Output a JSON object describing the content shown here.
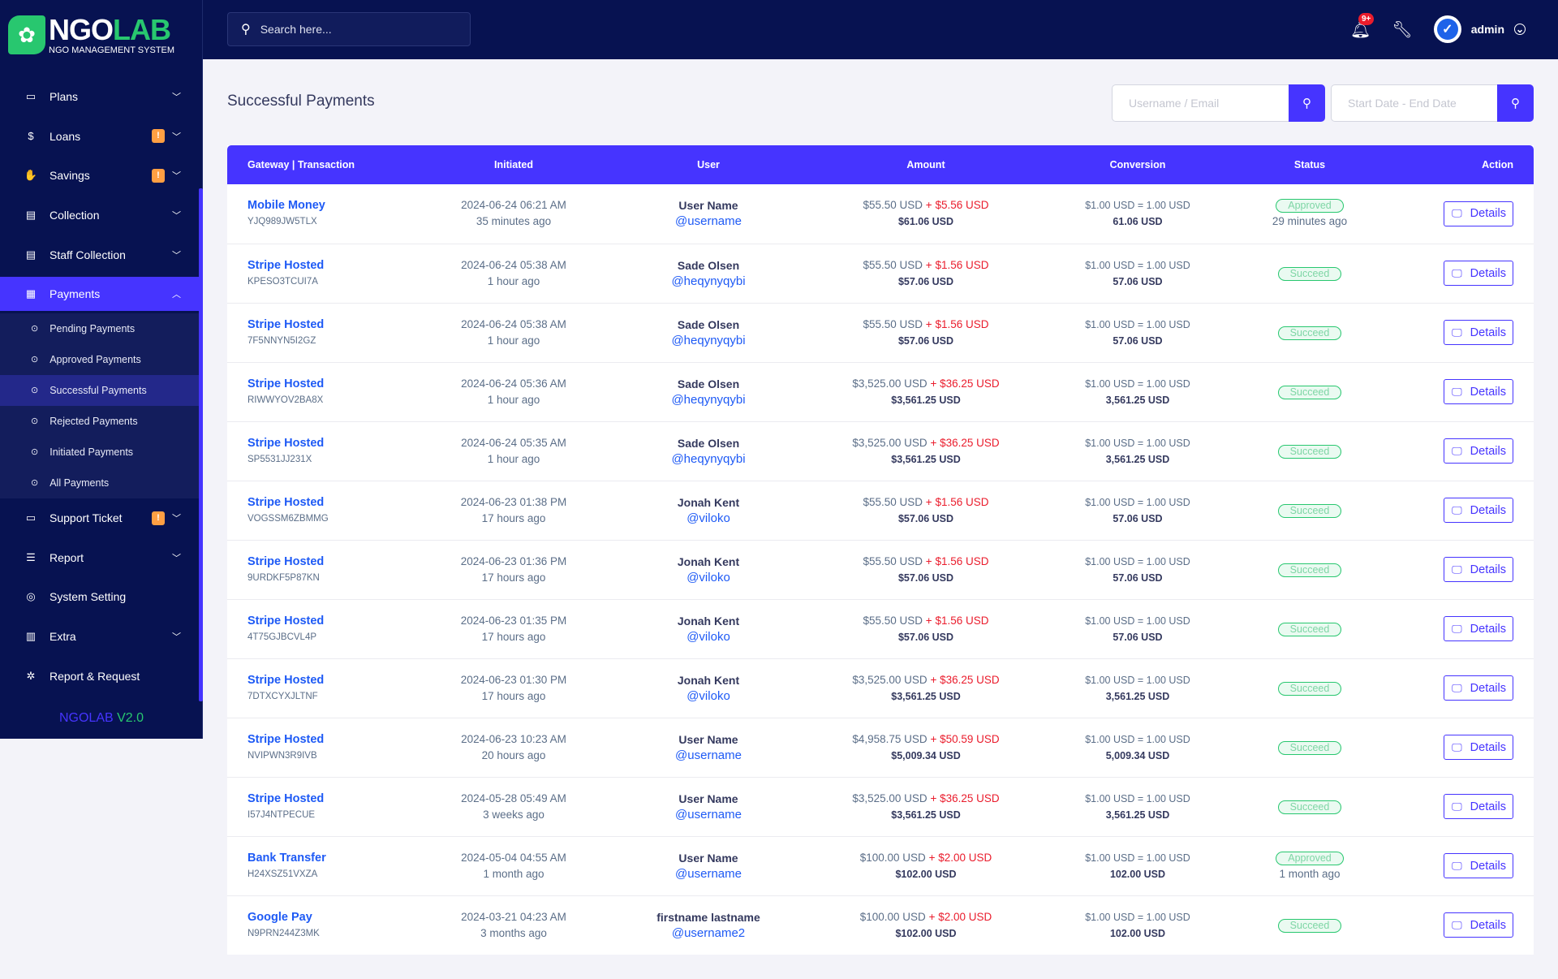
{
  "brand": {
    "logo_main_a": "NGO",
    "logo_main_b": "LAB",
    "logo_sub": "NGO MANAGEMENT SYSTEM",
    "version_name": "NGOLAB",
    "version_num": "V2.0"
  },
  "header": {
    "search_placeholder": "Search here...",
    "notification_count": "9+",
    "user_name": "admin"
  },
  "sidebar": {
    "items": [
      {
        "label": "Plans",
        "icon": "money-bill-icon",
        "chevron": true
      },
      {
        "label": "Loans",
        "icon": "dollar-screen-icon",
        "chevron": true,
        "warn": "!"
      },
      {
        "label": "Savings",
        "icon": "hand-coins-icon",
        "chevron": true,
        "warn": "!"
      },
      {
        "label": "Collection",
        "icon": "receipt-icon",
        "chevron": true
      },
      {
        "label": "Staff Collection",
        "icon": "receipt-icon",
        "chevron": true
      }
    ],
    "payments": {
      "label": "Payments",
      "icon": "file-invoice-dollar-icon"
    },
    "sub_items": [
      {
        "label": "Pending Payments"
      },
      {
        "label": "Approved Payments"
      },
      {
        "label": "Successful Payments",
        "active": true
      },
      {
        "label": "Rejected Payments"
      },
      {
        "label": "Initiated Payments"
      },
      {
        "label": "All Payments"
      }
    ],
    "items_after": [
      {
        "label": "Support Ticket",
        "icon": "ticket-icon",
        "chevron": true,
        "warn": "!"
      },
      {
        "label": "Report",
        "icon": "list-icon",
        "chevron": true
      },
      {
        "label": "System Setting",
        "icon": "life-ring-icon",
        "chevron": false
      },
      {
        "label": "Extra",
        "icon": "server-icon",
        "chevron": true
      },
      {
        "label": "Report & Request",
        "icon": "bug-icon",
        "chevron": false
      }
    ]
  },
  "main": {
    "title": "Successful Payments",
    "filter_user_placeholder": "Username / Email",
    "filter_date_placeholder": "Start Date - End Date",
    "columns": [
      "Gateway | Transaction",
      "Initiated",
      "User",
      "Amount",
      "Conversion",
      "Status",
      "Action"
    ],
    "details_label": "Details",
    "rows": [
      {
        "gateway": "Mobile Money",
        "trx": "YJQ989JW5TLX",
        "date": "2024-06-24 06:21 AM",
        "ago": "35 minutes ago",
        "name": "User Name",
        "handle": "@username",
        "amount": "$55.50 USD",
        "charge": "$5.56 USD",
        "total": "$61.06 USD",
        "rate": "$1.00 USD = 1.00 USD",
        "converted": "61.06 USD",
        "status": "Approved",
        "status_ago": "29 minutes ago"
      },
      {
        "gateway": "Stripe Hosted",
        "trx": "KPESO3TCUI7A",
        "date": "2024-06-24 05:38 AM",
        "ago": "1 hour ago",
        "name": "Sade Olsen",
        "handle": "@heqynyqybi",
        "amount": "$55.50 USD",
        "charge": "$1.56 USD",
        "total": "$57.06 USD",
        "rate": "$1.00 USD = 1.00 USD",
        "converted": "57.06 USD",
        "status": "Succeed"
      },
      {
        "gateway": "Stripe Hosted",
        "trx": "7F5NNYN5I2GZ",
        "date": "2024-06-24 05:38 AM",
        "ago": "1 hour ago",
        "name": "Sade Olsen",
        "handle": "@heqynyqybi",
        "amount": "$55.50 USD",
        "charge": "$1.56 USD",
        "total": "$57.06 USD",
        "rate": "$1.00 USD = 1.00 USD",
        "converted": "57.06 USD",
        "status": "Succeed"
      },
      {
        "gateway": "Stripe Hosted",
        "trx": "RIWWYOV2BA8X",
        "date": "2024-06-24 05:36 AM",
        "ago": "1 hour ago",
        "name": "Sade Olsen",
        "handle": "@heqynyqybi",
        "amount": "$3,525.00 USD",
        "charge": "$36.25 USD",
        "total": "$3,561.25 USD",
        "rate": "$1.00 USD = 1.00 USD",
        "converted": "3,561.25 USD",
        "status": "Succeed"
      },
      {
        "gateway": "Stripe Hosted",
        "trx": "SP5531JJ231X",
        "date": "2024-06-24 05:35 AM",
        "ago": "1 hour ago",
        "name": "Sade Olsen",
        "handle": "@heqynyqybi",
        "amount": "$3,525.00 USD",
        "charge": "$36.25 USD",
        "total": "$3,561.25 USD",
        "rate": "$1.00 USD = 1.00 USD",
        "converted": "3,561.25 USD",
        "status": "Succeed"
      },
      {
        "gateway": "Stripe Hosted",
        "trx": "VOGSSM6ZBMMG",
        "date": "2024-06-23 01:38 PM",
        "ago": "17 hours ago",
        "name": "Jonah Kent",
        "handle": "@viloko",
        "amount": "$55.50 USD",
        "charge": "$1.56 USD",
        "total": "$57.06 USD",
        "rate": "$1.00 USD = 1.00 USD",
        "converted": "57.06 USD",
        "status": "Succeed"
      },
      {
        "gateway": "Stripe Hosted",
        "trx": "9URDKF5P87KN",
        "date": "2024-06-23 01:36 PM",
        "ago": "17 hours ago",
        "name": "Jonah Kent",
        "handle": "@viloko",
        "amount": "$55.50 USD",
        "charge": "$1.56 USD",
        "total": "$57.06 USD",
        "rate": "$1.00 USD = 1.00 USD",
        "converted": "57.06 USD",
        "status": "Succeed"
      },
      {
        "gateway": "Stripe Hosted",
        "trx": "4T75GJBCVL4P",
        "date": "2024-06-23 01:35 PM",
        "ago": "17 hours ago",
        "name": "Jonah Kent",
        "handle": "@viloko",
        "amount": "$55.50 USD",
        "charge": "$1.56 USD",
        "total": "$57.06 USD",
        "rate": "$1.00 USD = 1.00 USD",
        "converted": "57.06 USD",
        "status": "Succeed"
      },
      {
        "gateway": "Stripe Hosted",
        "trx": "7DTXCYXJLTNF",
        "date": "2024-06-23 01:30 PM",
        "ago": "17 hours ago",
        "name": "Jonah Kent",
        "handle": "@viloko",
        "amount": "$3,525.00 USD",
        "charge": "$36.25 USD",
        "total": "$3,561.25 USD",
        "rate": "$1.00 USD = 1.00 USD",
        "converted": "3,561.25 USD",
        "status": "Succeed"
      },
      {
        "gateway": "Stripe Hosted",
        "trx": "NVIPWN3R9IVB",
        "date": "2024-06-23 10:23 AM",
        "ago": "20 hours ago",
        "name": "User Name",
        "handle": "@username",
        "amount": "$4,958.75 USD",
        "charge": "$50.59 USD",
        "total": "$5,009.34 USD",
        "rate": "$1.00 USD = 1.00 USD",
        "converted": "5,009.34 USD",
        "status": "Succeed"
      },
      {
        "gateway": "Stripe Hosted",
        "trx": "I57J4NTPECUE",
        "date": "2024-05-28 05:49 AM",
        "ago": "3 weeks ago",
        "name": "User Name",
        "handle": "@username",
        "amount": "$3,525.00 USD",
        "charge": "$36.25 USD",
        "total": "$3,561.25 USD",
        "rate": "$1.00 USD = 1.00 USD",
        "converted": "3,561.25 USD",
        "status": "Succeed"
      },
      {
        "gateway": "Bank Transfer",
        "trx": "H24XSZ51VXZA",
        "date": "2024-05-04 04:55 AM",
        "ago": "1 month ago",
        "name": "User Name",
        "handle": "@username",
        "amount": "$100.00 USD",
        "charge": "$2.00 USD",
        "total": "$102.00 USD",
        "rate": "$1.00 USD = 1.00 USD",
        "converted": "102.00 USD",
        "status": "Approved",
        "status_ago": "1 month ago"
      },
      {
        "gateway": "Google Pay",
        "trx": "N9PRN244Z3MK",
        "date": "2024-03-21 04:23 AM",
        "ago": "3 months ago",
        "name": "firstname lastname",
        "handle": "@username2",
        "amount": "$100.00 USD",
        "charge": "$2.00 USD",
        "total": "$102.00 USD",
        "rate": "$1.00 USD = 1.00 USD",
        "converted": "102.00 USD",
        "status": "Succeed"
      }
    ]
  },
  "colors": {
    "accent": "#4634ff",
    "navy": "#071251",
    "success": "#28c76f",
    "danger": "#ea1c2c",
    "link": "#1e5af5",
    "warning": "#ff9f43"
  }
}
